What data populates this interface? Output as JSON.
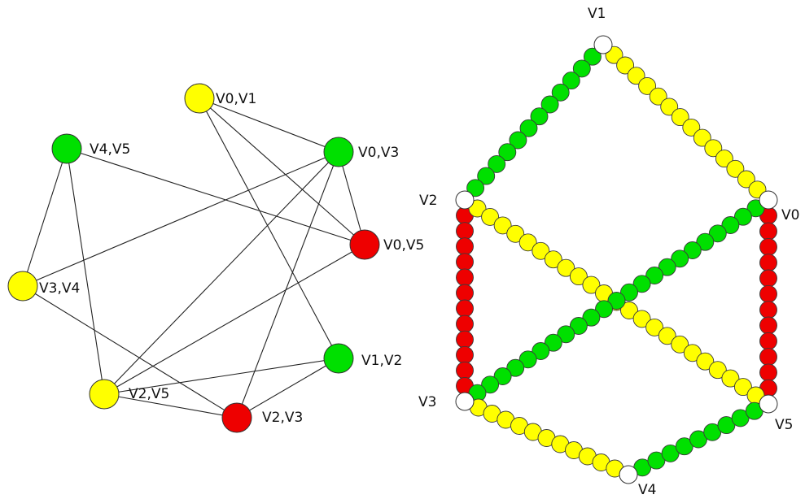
{
  "colors": {
    "yellow": "#ffff00",
    "green": "#00e000",
    "red": "#ee0000",
    "white": "#ffffff"
  },
  "left_graph": {
    "nodes": [
      {
        "id": "v0v1",
        "label": "V0,V1",
        "color": "yellow"
      },
      {
        "id": "v0v3",
        "label": "V0,V3",
        "color": "green"
      },
      {
        "id": "v4v5",
        "label": "V4,V5",
        "color": "green"
      },
      {
        "id": "v0v5",
        "label": "V0,V5",
        "color": "red"
      },
      {
        "id": "v3v4",
        "label": "V3,V4",
        "color": "yellow"
      },
      {
        "id": "v1v2",
        "label": "V1,V2",
        "color": "green"
      },
      {
        "id": "v2v5",
        "label": "V2,V5",
        "color": "yellow"
      },
      {
        "id": "v2v3",
        "label": "V2,V3",
        "color": "red"
      }
    ],
    "edges": [
      [
        "v0v1",
        "v0v3"
      ],
      [
        "v0v1",
        "v0v5"
      ],
      [
        "v0v1",
        "v1v2"
      ],
      [
        "v4v5",
        "v3v4"
      ],
      [
        "v4v5",
        "v2v5"
      ],
      [
        "v4v5",
        "v0v5"
      ],
      [
        "v0v3",
        "v3v4"
      ],
      [
        "v0v3",
        "v2v5"
      ],
      [
        "v0v3",
        "v2v3"
      ],
      [
        "v0v3",
        "v0v5"
      ],
      [
        "v0v5",
        "v2v5"
      ],
      [
        "v3v4",
        "v2v3"
      ],
      [
        "v1v2",
        "v2v5"
      ],
      [
        "v1v2",
        "v2v3"
      ],
      [
        "v2v5",
        "v2v3"
      ]
    ]
  },
  "right_graph": {
    "vertices": [
      {
        "id": "V1",
        "label": "V1"
      },
      {
        "id": "V2",
        "label": "V2"
      },
      {
        "id": "V0",
        "label": "V0"
      },
      {
        "id": "V3",
        "label": "V3"
      },
      {
        "id": "V5",
        "label": "V5"
      },
      {
        "id": "V4",
        "label": "V4"
      }
    ],
    "edges": [
      {
        "from": "V1",
        "to": "V2",
        "color": "green"
      },
      {
        "from": "V1",
        "to": "V0",
        "color": "yellow"
      },
      {
        "from": "V2",
        "to": "V3",
        "color": "red"
      },
      {
        "from": "V0",
        "to": "V5",
        "color": "red"
      },
      {
        "from": "V2",
        "to": "V5",
        "color": "yellow"
      },
      {
        "from": "V0",
        "to": "V3",
        "color": "green"
      },
      {
        "from": "V3",
        "to": "V4",
        "color": "yellow"
      },
      {
        "from": "V4",
        "to": "V5",
        "color": "green"
      }
    ]
  }
}
